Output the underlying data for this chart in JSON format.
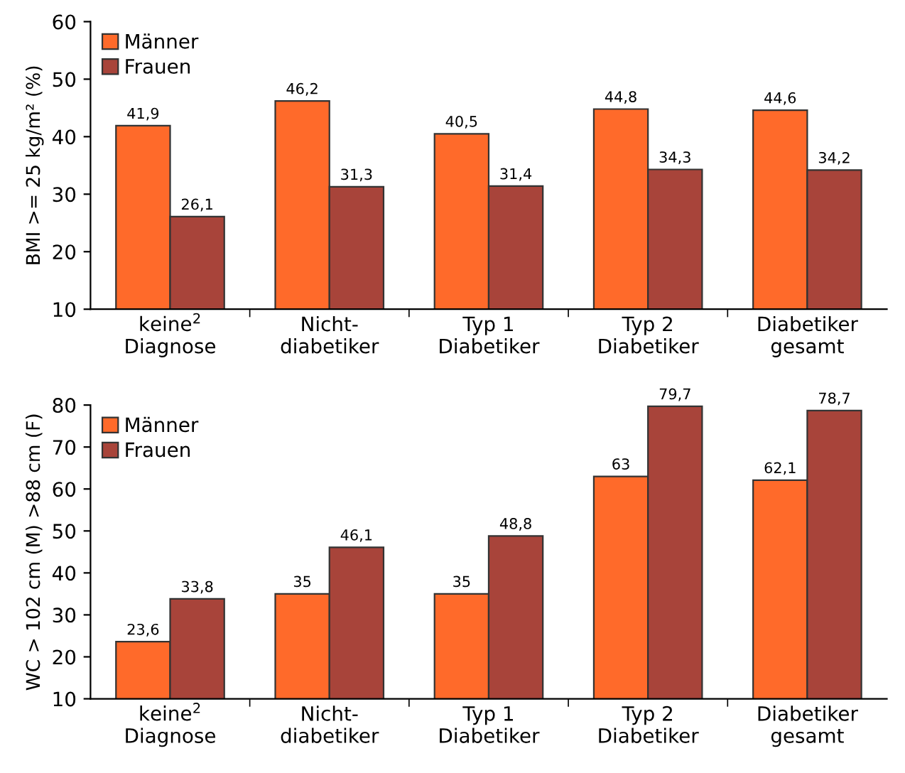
{
  "chart_data": [
    {
      "type": "bar",
      "ylabel": "BMI >= 25 kg/m² (%)",
      "categories": [
        "keine$^{2}$\nDiagnose",
        "Nicht-\ndiabetiker",
        "Typ 1\nDiabetiker",
        "Typ 2\nDiabetiker",
        "Diabetiker\ngesamt"
      ],
      "series": [
        {
          "name": "Männer",
          "color": "#ff6a2a",
          "values": [
            41.9,
            46.2,
            40.5,
            44.8,
            44.6
          ],
          "value_labels": [
            "41,9",
            "46,2",
            "40,5",
            "44,8",
            "44,6"
          ]
        },
        {
          "name": "Frauen",
          "color": "#a8443a",
          "values": [
            26.1,
            31.3,
            31.4,
            34.3,
            34.2
          ],
          "value_labels": [
            "26,1",
            "31,3",
            "31,4",
            "34,3",
            "34,2"
          ]
        }
      ],
      "ylim": [
        10,
        60
      ],
      "yticks": [
        10,
        20,
        30,
        40,
        50,
        60
      ],
      "legend": "top left",
      "grid": false
    },
    {
      "type": "bar",
      "ylabel": "WC > 102 cm (M) >88 cm (F)",
      "categories": [
        "keine$^{2}$\nDiagnose",
        "Nicht-\ndiabetiker",
        "Typ 1\nDiabetiker",
        "Typ 2\nDiabetiker",
        "Diabetiker\ngesamt"
      ],
      "series": [
        {
          "name": "Männer",
          "color": "#ff6a2a",
          "values": [
            23.6,
            35,
            35,
            63,
            62.1
          ],
          "value_labels": [
            "23,6",
            "35",
            "35",
            "63",
            "62,1"
          ]
        },
        {
          "name": "Frauen",
          "color": "#a8443a",
          "values": [
            33.8,
            46.1,
            48.8,
            79.7,
            78.7
          ],
          "value_labels": [
            "33,8",
            "46,1",
            "48,8",
            "79,7",
            "78,7"
          ]
        }
      ],
      "ylim": [
        10,
        80
      ],
      "yticks": [
        10,
        20,
        30,
        40,
        50,
        60,
        70,
        80
      ],
      "legend": "top left",
      "grid": false
    }
  ]
}
